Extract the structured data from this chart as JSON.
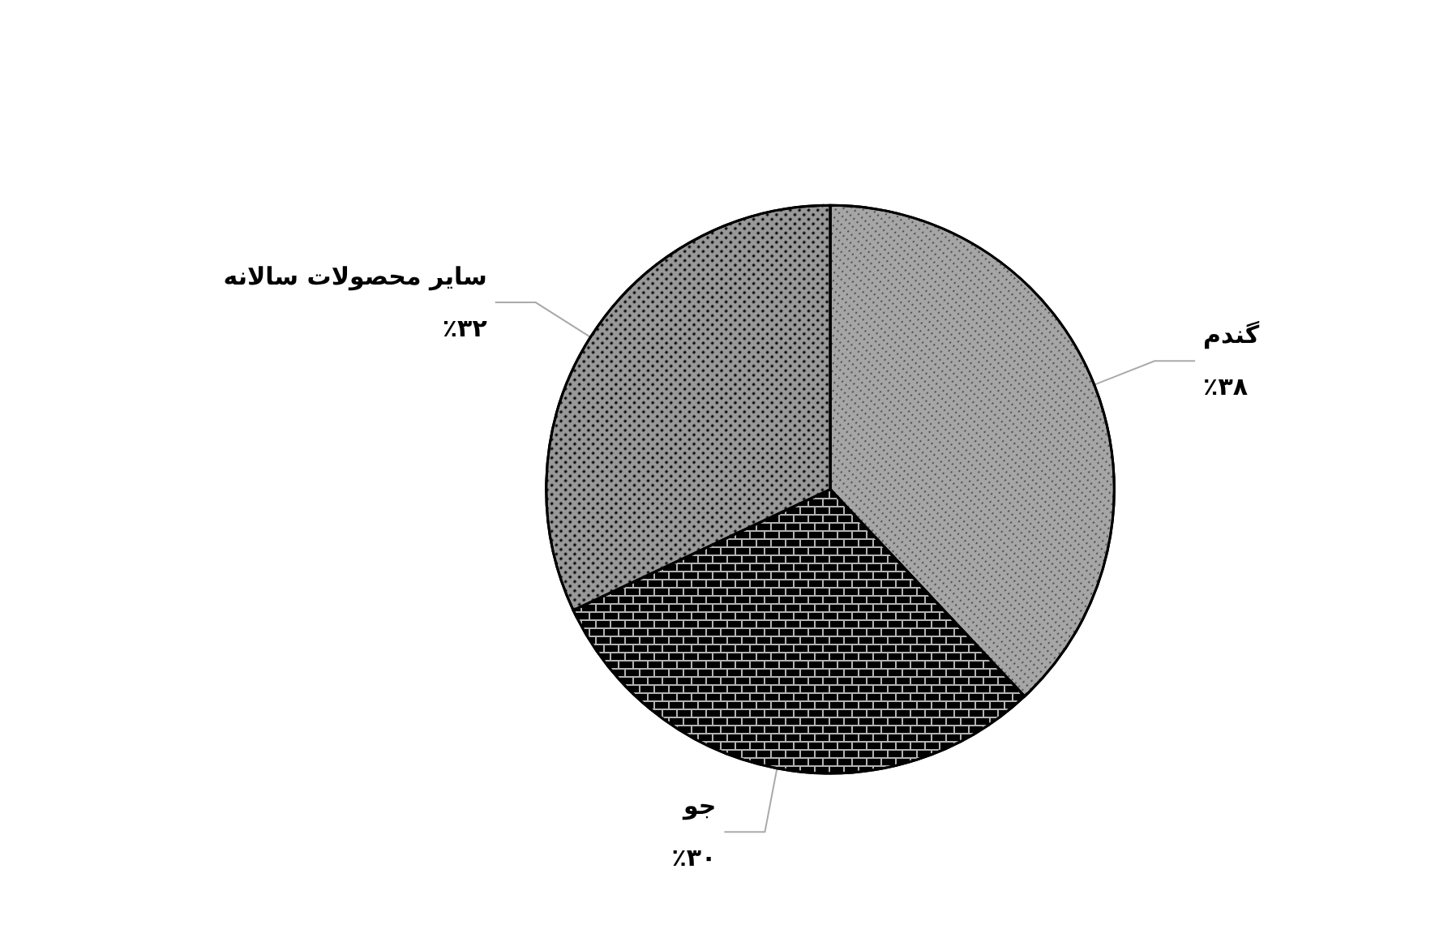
{
  "chart_data": {
    "type": "pie",
    "categories": [
      "گندم",
      "جو",
      "سایر محصولات سالانه"
    ],
    "values": [
      38,
      30,
      32
    ],
    "value_labels": [
      "٪۳۸",
      "٪۳۰",
      "٪۳۲"
    ],
    "colors": [
      "#a6a6a6",
      "#b3b3b3",
      "#999999"
    ],
    "legend": false
  }
}
